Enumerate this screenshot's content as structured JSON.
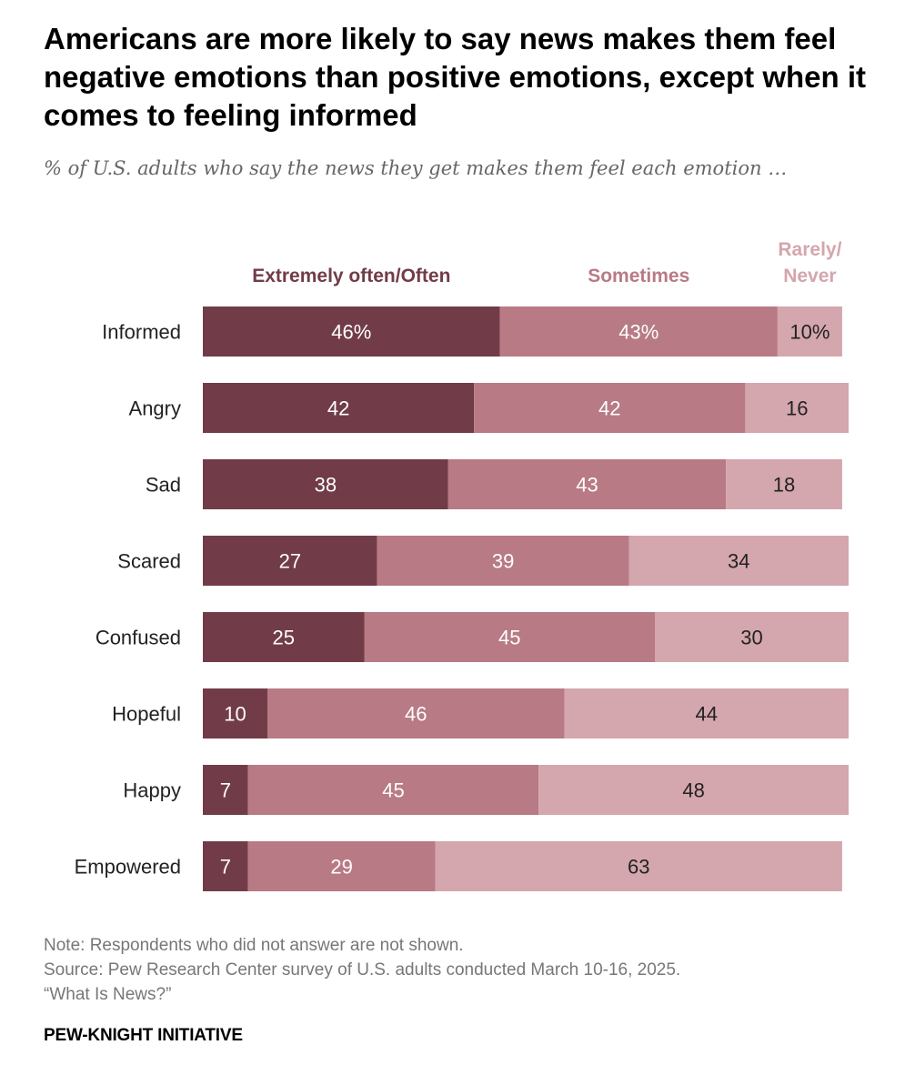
{
  "title": "Americans are more likely to say news makes them feel negative emotions than positive emotions, except when it comes to feeling informed",
  "subtitle": "% of U.S. adults who say the news they get makes them feel each emotion …",
  "chart_data": {
    "type": "bar",
    "orientation": "horizontal",
    "stacked": true,
    "categories": [
      "Informed",
      "Angry",
      "Sad",
      "Scared",
      "Confused",
      "Hopeful",
      "Happy",
      "Empowered"
    ],
    "series": [
      {
        "name": "Extremely often/Often",
        "legend_lines": [
          "Extremely often/Often"
        ],
        "color": "#713c48",
        "label_color": "#ffffff",
        "values": [
          46,
          42,
          38,
          27,
          25,
          10,
          7,
          7
        ]
      },
      {
        "name": "Sometimes",
        "legend_lines": [
          "Sometimes"
        ],
        "color": "#b87a84",
        "label_color": "#ffffff",
        "values": [
          43,
          42,
          43,
          39,
          45,
          46,
          45,
          29
        ]
      },
      {
        "name": "Rarely/Never",
        "legend_lines": [
          "Rarely/",
          "Never"
        ],
        "color": "#d4a6ad",
        "label_color": "#222222",
        "values": [
          10,
          16,
          18,
          34,
          30,
          44,
          48,
          63
        ]
      }
    ],
    "percent_sign_first_row": true,
    "grid": false,
    "legend_position": "top"
  },
  "note": "Note: Respondents who did not answer are not shown.",
  "source": "Source: Pew Research Center survey of U.S. adults conducted March 10-16, 2025.",
  "report": "“What Is News?”",
  "brand": "PEW-KNIGHT INITIATIVE"
}
